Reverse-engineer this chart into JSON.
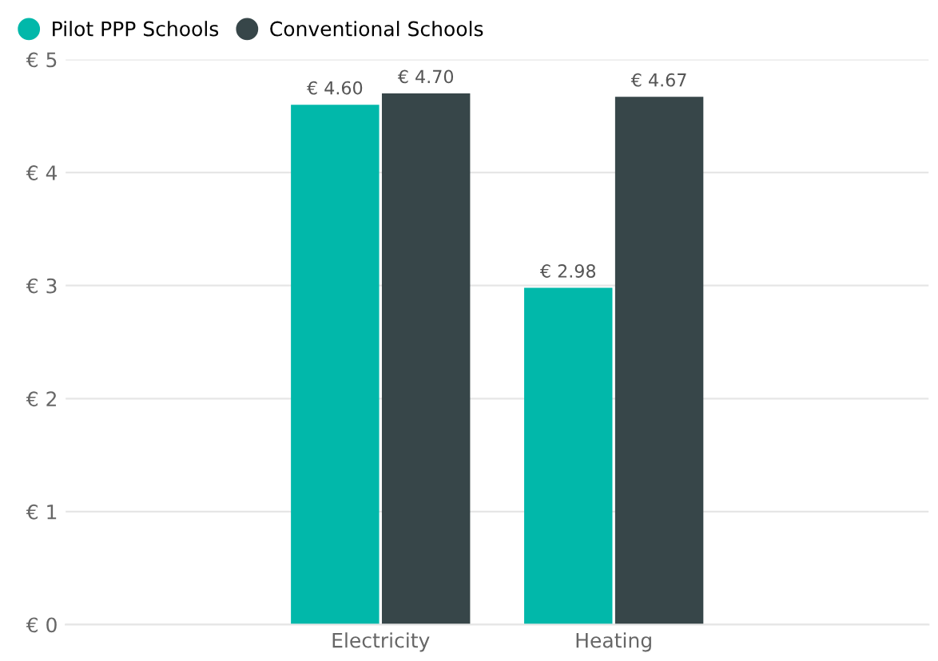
{
  "chart_data": {
    "type": "bar",
    "categories": [
      "Electricity",
      "Heating"
    ],
    "series": [
      {
        "name": "Pilot PPP Schools",
        "color": "#01b8aa",
        "values": [
          4.6,
          2.98
        ],
        "value_labels": [
          "€ 4.60",
          "€ 2.98"
        ]
      },
      {
        "name": "Conventional Schools",
        "color": "#374649",
        "values": [
          4.7,
          4.67
        ],
        "value_labels": [
          "€ 4.70",
          "€ 4.67"
        ]
      }
    ],
    "ylim": [
      0,
      5
    ],
    "yticks": [
      {
        "value": 0,
        "label": "€ 0"
      },
      {
        "value": 1,
        "label": "€ 1"
      },
      {
        "value": 2,
        "label": "€ 2"
      },
      {
        "value": 3,
        "label": "€ 3"
      },
      {
        "value": 4,
        "label": "€ 4"
      },
      {
        "value": 5,
        "label": "€ 5"
      }
    ],
    "grid": "y",
    "legend": "top left"
  }
}
